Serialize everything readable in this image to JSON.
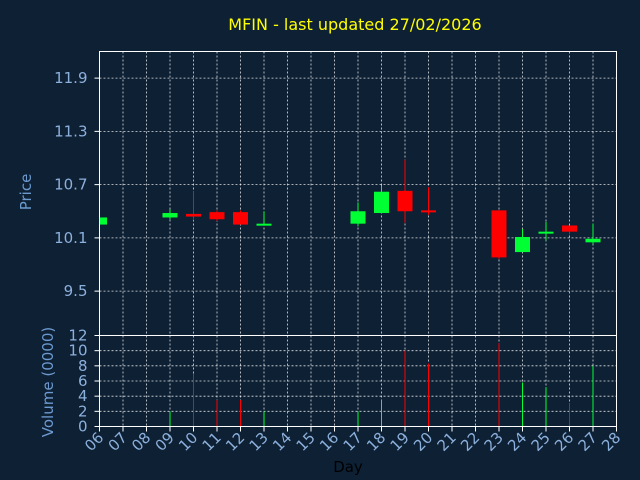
{
  "chart_data": {
    "type": "candlestick",
    "title": "MFIN - last updated 27/02/2026",
    "xlabel": "Day",
    "price_panel": {
      "ylabel": "Price",
      "ylim": [
        9.0,
        12.2
      ],
      "yticks": [
        9.5,
        10.1,
        10.7,
        11.3,
        11.9
      ],
      "ytick_labels": [
        "9.5",
        "10.1",
        "10.7",
        "11.3",
        "11.9"
      ],
      "grid": true
    },
    "volume_panel": {
      "ylabel": "Volume (0000)",
      "ylim": [
        0,
        12
      ],
      "yticks": [
        0,
        2,
        4,
        6,
        8,
        10,
        12
      ],
      "ytick_labels": [
        "0",
        "2",
        "4",
        "6",
        "8",
        "10",
        "12"
      ],
      "grid": true
    },
    "x_ticks": [
      "06",
      "07",
      "08",
      "09",
      "10",
      "11",
      "12",
      "13",
      "14",
      "15",
      "16",
      "17",
      "18",
      "19",
      "20",
      "21",
      "22",
      "23",
      "24",
      "25",
      "26",
      "27",
      "28"
    ],
    "colors": {
      "up": "#00ff33",
      "down": "#ff0000",
      "background": "#0e2034",
      "title": "#ffff00",
      "label": "#6c9ad0",
      "tick": "#8cb0dc"
    },
    "candles": [
      {
        "day": 6,
        "open": 10.25,
        "high": 10.33,
        "low": 10.25,
        "close": 10.33,
        "volume": 0.0
      },
      {
        "day": 9,
        "open": 10.33,
        "high": 10.42,
        "low": 10.31,
        "close": 10.38,
        "volume": 2.0
      },
      {
        "day": 10,
        "open": 10.37,
        "high": 10.62,
        "low": 10.3,
        "close": 10.34,
        "volume": 7.0
      },
      {
        "day": 11,
        "open": 10.39,
        "high": 10.41,
        "low": 10.29,
        "close": 10.31,
        "volume": 3.5
      },
      {
        "day": 12,
        "open": 10.39,
        "high": 10.41,
        "low": 10.25,
        "close": 10.25,
        "volume": 3.5
      },
      {
        "day": 13,
        "open": 10.25,
        "high": 10.4,
        "low": 10.24,
        "close": 10.26,
        "volume": 2.0
      },
      {
        "day": 17,
        "open": 10.26,
        "high": 10.5,
        "low": 10.23,
        "close": 10.4,
        "volume": 2.0
      },
      {
        "day": 18,
        "open": 10.38,
        "high": 10.69,
        "low": 10.38,
        "close": 10.62,
        "volume": 3.5
      },
      {
        "day": 19,
        "open": 10.63,
        "high": 10.98,
        "low": 10.27,
        "close": 10.4,
        "volume": 10.0
      },
      {
        "day": 20,
        "open": 10.41,
        "high": 10.67,
        "low": 10.36,
        "close": 10.39,
        "volume": 8.3
      },
      {
        "day": 23,
        "open": 10.41,
        "high": 10.41,
        "low": 9.86,
        "close": 9.88,
        "volume": 11.0
      },
      {
        "day": 24,
        "open": 9.94,
        "high": 10.2,
        "low": 9.94,
        "close": 10.11,
        "volume": 5.8
      },
      {
        "day": 25,
        "open": 10.15,
        "high": 10.28,
        "low": 10.07,
        "close": 10.17,
        "volume": 5.2
      },
      {
        "day": 26,
        "open": 10.24,
        "high": 10.24,
        "low": 10.14,
        "close": 10.17,
        "volume": 3.0
      },
      {
        "day": 27,
        "open": 10.05,
        "high": 10.26,
        "low": 10.03,
        "close": 10.09,
        "volume": 8.0
      }
    ]
  }
}
